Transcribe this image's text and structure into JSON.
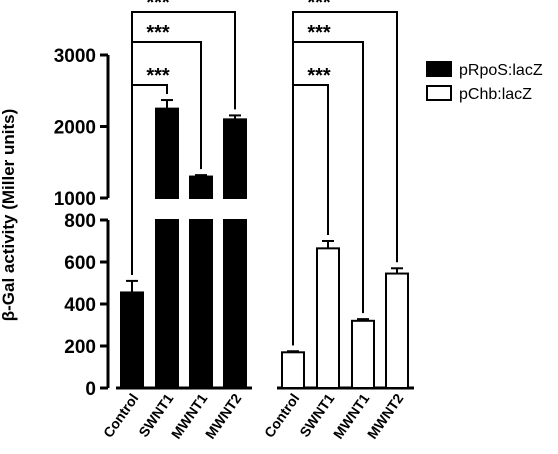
{
  "chart_data": {
    "type": "bar",
    "ylabel": "β-Gal activity (Miller units)",
    "yaxis_break": true,
    "lower_axis": {
      "ylim": [
        0,
        800
      ],
      "ticks": [
        "0",
        "200",
        "400",
        "600",
        "800"
      ]
    },
    "upper_axis": {
      "ylim": [
        1000,
        3000
      ],
      "ticks": [
        "1000",
        "2000",
        "3000"
      ]
    },
    "groups": [
      {
        "name": "pRpoS:lacZ",
        "fill": "#000000",
        "categories": [
          "Control",
          "SWNT1",
          "MWNT1",
          "MWNT2"
        ],
        "values": [
          455,
          2250,
          1300,
          2100
        ],
        "errors": [
          55,
          120,
          20,
          55
        ],
        "annotations": [
          {
            "from": "Control",
            "to": "SWNT1",
            "label": "***"
          },
          {
            "from": "Control",
            "to": "MWNT1",
            "label": "***"
          },
          {
            "from": "Control",
            "to": "MWNT2",
            "label": "***"
          }
        ]
      },
      {
        "name": "pChb:lacZ",
        "fill": "#ffffff",
        "categories": [
          "Control",
          "SWNT1",
          "MWNT1",
          "MWNT2"
        ],
        "values": [
          170,
          665,
          320,
          545
        ],
        "errors": [
          5,
          35,
          8,
          25
        ],
        "annotations": [
          {
            "from": "Control",
            "to": "SWNT1",
            "label": "***"
          },
          {
            "from": "Control",
            "to": "MWNT1",
            "label": "***"
          },
          {
            "from": "Control",
            "to": "MWNT2",
            "label": "***"
          }
        ]
      }
    ],
    "legend": {
      "placement": "top-right",
      "entries": [
        {
          "label": "pRpoS:lacZ",
          "fill": "#000000"
        },
        {
          "label": "pChb:lacZ",
          "fill": "#ffffff"
        }
      ]
    }
  }
}
